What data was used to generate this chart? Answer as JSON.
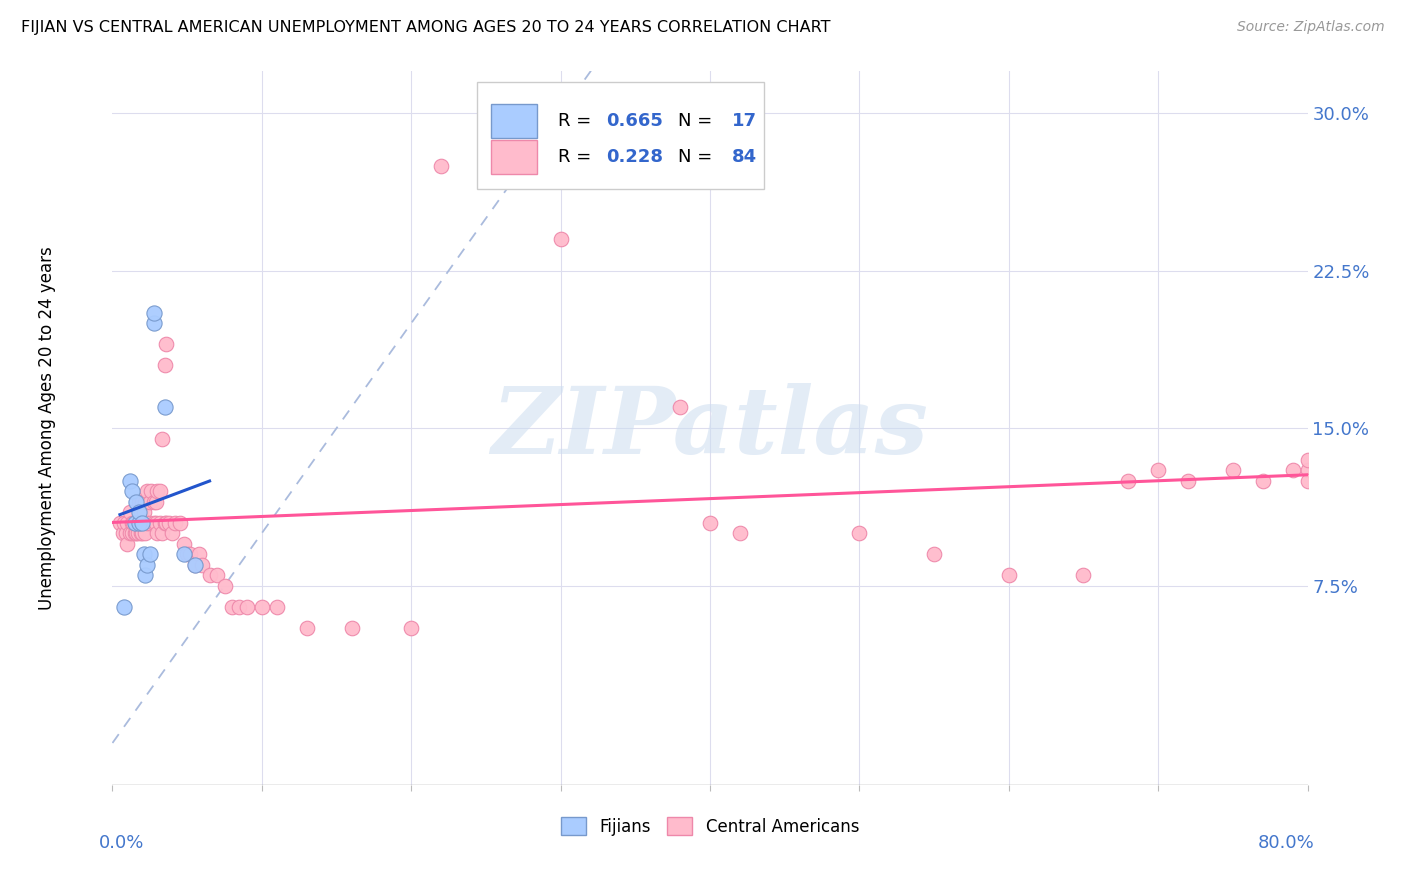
{
  "title": "FIJIAN VS CENTRAL AMERICAN UNEMPLOYMENT AMONG AGES 20 TO 24 YEARS CORRELATION CHART",
  "source": "Source: ZipAtlas.com",
  "ylabel": "Unemployment Among Ages 20 to 24 years",
  "xmin": 0.0,
  "xmax": 0.8,
  "ymin": -0.02,
  "ymax": 0.32,
  "ytick_labels_right": [
    "7.5%",
    "15.0%",
    "22.5%",
    "30.0%"
  ],
  "ytick_vals_right": [
    0.075,
    0.15,
    0.225,
    0.3
  ],
  "legend_r1": "0.665",
  "legend_n1": "17",
  "legend_r2": "0.228",
  "legend_n2": "84",
  "fijian_color": "#aaccff",
  "fijian_edge_color": "#7799cc",
  "central_color": "#ffbbcc",
  "central_edge_color": "#ee88aa",
  "fijian_line_color": "#2255cc",
  "central_line_color": "#ff5599",
  "diag_color": "#aabbdd",
  "watermark": "ZIPatlas",
  "watermark_color": "#ddeeff",
  "fijians_x": [
    0.008,
    0.012,
    0.013,
    0.015,
    0.016,
    0.018,
    0.018,
    0.02,
    0.021,
    0.022,
    0.023,
    0.025,
    0.028,
    0.028,
    0.035,
    0.048,
    0.055
  ],
  "fijians_y": [
    0.065,
    0.125,
    0.12,
    0.105,
    0.115,
    0.105,
    0.11,
    0.105,
    0.09,
    0.08,
    0.085,
    0.09,
    0.2,
    0.205,
    0.16,
    0.09,
    0.085
  ],
  "central_x": [
    0.005,
    0.007,
    0.008,
    0.009,
    0.01,
    0.01,
    0.012,
    0.012,
    0.013,
    0.013,
    0.014,
    0.015,
    0.015,
    0.016,
    0.016,
    0.017,
    0.018,
    0.018,
    0.019,
    0.019,
    0.02,
    0.02,
    0.021,
    0.022,
    0.022,
    0.023,
    0.023,
    0.025,
    0.025,
    0.026,
    0.028,
    0.028,
    0.029,
    0.029,
    0.03,
    0.03,
    0.032,
    0.032,
    0.033,
    0.033,
    0.035,
    0.035,
    0.036,
    0.036,
    0.038,
    0.04,
    0.042,
    0.045,
    0.048,
    0.05,
    0.052,
    0.055,
    0.058,
    0.06,
    0.065,
    0.07,
    0.075,
    0.08,
    0.085,
    0.09,
    0.1,
    0.11,
    0.13,
    0.16,
    0.2,
    0.22,
    0.25,
    0.3,
    0.38,
    0.4,
    0.42,
    0.5,
    0.55,
    0.6,
    0.65,
    0.68,
    0.7,
    0.72,
    0.75,
    0.77,
    0.79,
    0.8,
    0.8,
    0.8
  ],
  "central_y": [
    0.105,
    0.1,
    0.105,
    0.1,
    0.095,
    0.105,
    0.1,
    0.11,
    0.105,
    0.1,
    0.105,
    0.1,
    0.105,
    0.1,
    0.105,
    0.1,
    0.105,
    0.115,
    0.1,
    0.11,
    0.1,
    0.115,
    0.11,
    0.1,
    0.115,
    0.105,
    0.12,
    0.105,
    0.115,
    0.12,
    0.105,
    0.115,
    0.105,
    0.115,
    0.1,
    0.12,
    0.105,
    0.12,
    0.1,
    0.145,
    0.105,
    0.18,
    0.105,
    0.19,
    0.105,
    0.1,
    0.105,
    0.105,
    0.095,
    0.09,
    0.09,
    0.085,
    0.09,
    0.085,
    0.08,
    0.08,
    0.075,
    0.065,
    0.065,
    0.065,
    0.065,
    0.065,
    0.055,
    0.055,
    0.055,
    0.275,
    0.27,
    0.24,
    0.16,
    0.105,
    0.1,
    0.1,
    0.09,
    0.08,
    0.08,
    0.125,
    0.13,
    0.125,
    0.13,
    0.125,
    0.13,
    0.13,
    0.125,
    0.135
  ]
}
